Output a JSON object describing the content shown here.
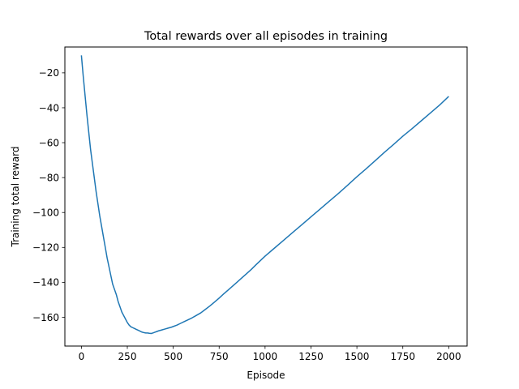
{
  "chart_data": {
    "type": "line",
    "title": "Total rewards over all episodes in training",
    "xlabel": "Episode",
    "ylabel": "Training total reward",
    "xlim": [
      -90,
      2100
    ],
    "ylim": [
      -176.5,
      -5.2
    ],
    "xticks": [
      0,
      250,
      500,
      750,
      1000,
      1250,
      1500,
      1750,
      2000
    ],
    "xtick_labels": [
      "0",
      "250",
      "500",
      "750",
      "1000",
      "1250",
      "1500",
      "1750",
      "2000"
    ],
    "yticks": [
      -160,
      -140,
      -120,
      -100,
      -80,
      -60,
      -40,
      -20
    ],
    "ytick_labels": [
      "−160",
      "−140",
      "−120",
      "−100",
      "−80",
      "−60",
      "−40",
      "−20"
    ],
    "grid": false,
    "legend": "none",
    "series": [
      {
        "color": "#1f77b4",
        "x": [
          0,
          10,
          20,
          30,
          40,
          50,
          60,
          70,
          80,
          90,
          100,
          110,
          120,
          130,
          140,
          150,
          160,
          170,
          180,
          190,
          200,
          210,
          220,
          230,
          240,
          250,
          260,
          270,
          280,
          290,
          300,
          310,
          320,
          330,
          340,
          350,
          360,
          370,
          380,
          390,
          400,
          410,
          420,
          430,
          440,
          450,
          460,
          470,
          480,
          490,
          500,
          520,
          540,
          560,
          580,
          600,
          625,
          650,
          675,
          700,
          725,
          750,
          775,
          800,
          825,
          850,
          875,
          900,
          925,
          950,
          975,
          1000,
          1050,
          1100,
          1150,
          1200,
          1250,
          1300,
          1350,
          1400,
          1450,
          1500,
          1550,
          1600,
          1650,
          1700,
          1750,
          1800,
          1850,
          1900,
          1950,
          2000
        ],
        "y": [
          -10,
          -22,
          -33,
          -44,
          -54,
          -64,
          -72,
          -80,
          -88,
          -95,
          -102,
          -108,
          -114,
          -120,
          -126,
          -131,
          -136,
          -141,
          -144,
          -147,
          -151,
          -154,
          -157,
          -159,
          -161,
          -163,
          -164.5,
          -165.5,
          -166,
          -166.5,
          -167,
          -167.5,
          -168,
          -168.5,
          -168.8,
          -169,
          -169,
          -169.2,
          -169.3,
          -169,
          -168.6,
          -168.2,
          -167.8,
          -167.5,
          -167.2,
          -166.9,
          -166.6,
          -166.3,
          -166,
          -165.7,
          -165.3,
          -164.5,
          -163.5,
          -162.5,
          -161.5,
          -160.5,
          -159,
          -157.5,
          -155.5,
          -153.5,
          -151.3,
          -149,
          -146.6,
          -144.3,
          -142,
          -139.7,
          -137.3,
          -135,
          -132.6,
          -130,
          -127.5,
          -125,
          -120.5,
          -116,
          -111.5,
          -107,
          -102.5,
          -98,
          -93.5,
          -89,
          -84.3,
          -79.5,
          -75,
          -70.3,
          -65.5,
          -61,
          -56.3,
          -52,
          -47.5,
          -43,
          -38.5,
          -33.5
        ]
      }
    ]
  }
}
